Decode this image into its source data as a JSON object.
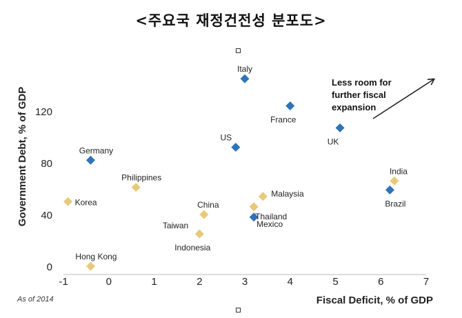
{
  "title": "<주요국 재정건전성 분포도>",
  "chart_data": {
    "type": "scatter",
    "xlabel": "Fiscal Deficit, % of GDP",
    "ylabel": "Government Debt, % of GDP",
    "xlim": [
      -1,
      7
    ],
    "ylim": [
      0,
      150
    ],
    "xticks": [
      "-1",
      "0",
      "1",
      "2",
      "3",
      "4",
      "5",
      "6",
      "7"
    ],
    "yticks": [
      "0",
      "40",
      "80",
      "120"
    ],
    "grid": false,
    "annotation": "Less room for further fiscal expansion",
    "annotation_lines": [
      "Less room for",
      "further fiscal",
      "expansion"
    ],
    "footnote": "As of 2014",
    "colors": {
      "blue": "#2f73b8",
      "gold": "#e8c97a"
    },
    "points": [
      {
        "label": "Italy",
        "x": 3.0,
        "y": 145,
        "color": "blue",
        "anchor": "above"
      },
      {
        "label": "France",
        "x": 4.0,
        "y": 124,
        "color": "blue",
        "anchor": "below"
      },
      {
        "label": "UK",
        "x": 5.1,
        "y": 107,
        "color": "blue",
        "anchor": "below"
      },
      {
        "label": "US",
        "x": 2.8,
        "y": 92,
        "color": "blue",
        "anchor": "above-left"
      },
      {
        "label": "Germany",
        "x": -0.4,
        "y": 82,
        "color": "blue",
        "anchor": "above-right"
      },
      {
        "label": "Brazil",
        "x": 6.2,
        "y": 59,
        "color": "blue",
        "anchor": "below-right"
      },
      {
        "label": "Mexico",
        "x": 3.2,
        "y": 38,
        "color": "blue",
        "anchor": "right-low"
      },
      {
        "label": "India",
        "x": 6.3,
        "y": 66,
        "color": "gold",
        "anchor": "above-mid"
      },
      {
        "label": "Malaysia",
        "x": 3.4,
        "y": 54,
        "color": "gold",
        "anchor": "right-high"
      },
      {
        "label": "Thailand",
        "x": 3.2,
        "y": 46,
        "color": "gold",
        "anchor": "right-lower"
      },
      {
        "label": "Philippines",
        "x": 0.6,
        "y": 61,
        "color": "gold",
        "anchor": "above-right"
      },
      {
        "label": "Korea",
        "x": -0.9,
        "y": 50,
        "color": "gold",
        "anchor": "right"
      },
      {
        "label": "China",
        "x": 2.1,
        "y": 40,
        "color": "gold",
        "anchor": "above-mid"
      },
      {
        "label": "Taiwan",
        "x": 2.05,
        "y": 40,
        "color": "gold",
        "anchor": "below-left",
        "hidden": true
      },
      {
        "label": "Indonesia",
        "x": 2.0,
        "y": 25,
        "color": "gold",
        "anchor": "below"
      },
      {
        "label": "Hong Kong",
        "x": -0.4,
        "y": 0,
        "color": "gold",
        "anchor": "above-right"
      }
    ]
  }
}
